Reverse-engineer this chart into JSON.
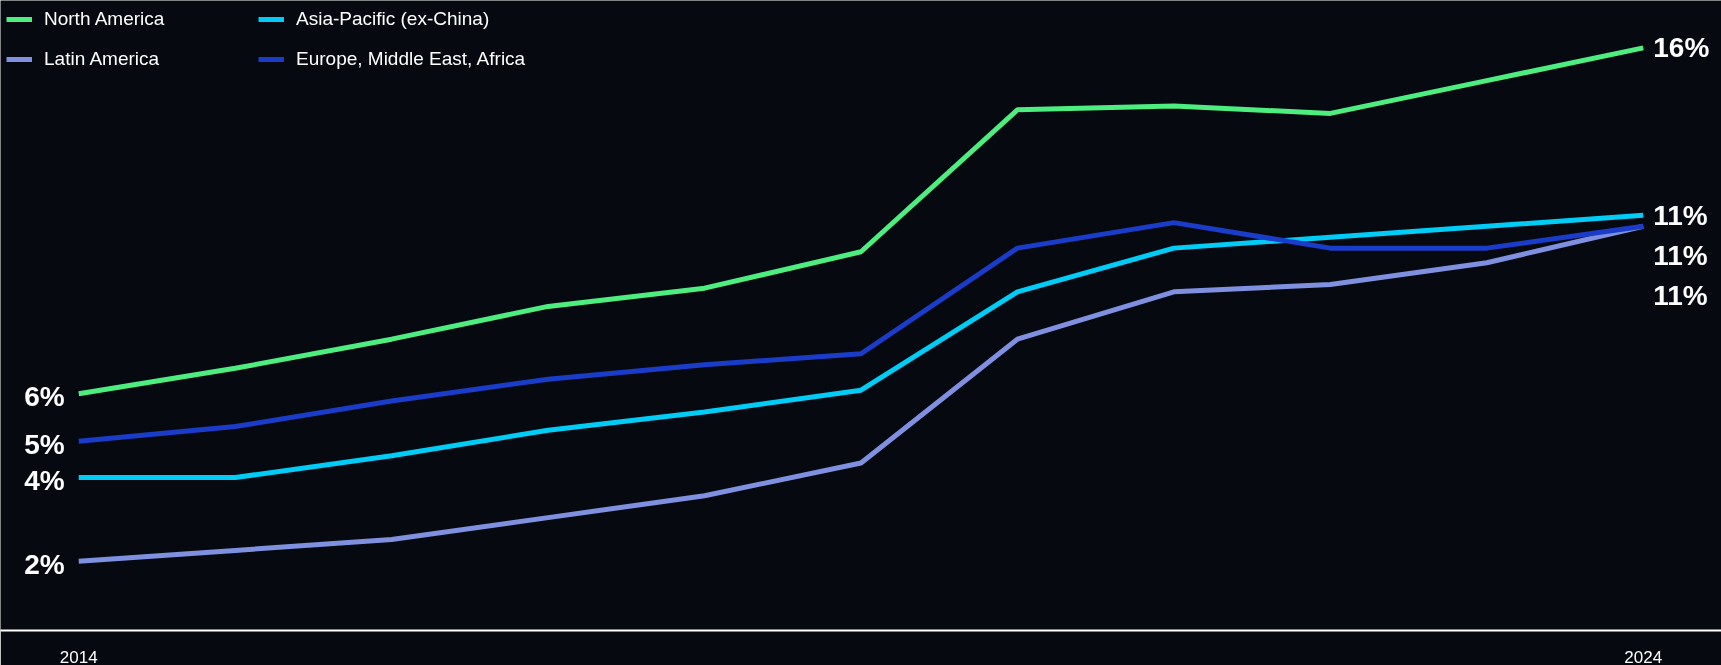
{
  "chart_data": {
    "type": "line",
    "x": [
      "2014",
      "2015",
      "2016",
      "2017",
      "2018",
      "2019",
      "2020",
      "2021",
      "2022",
      "2023",
      "2024"
    ],
    "xlim": [
      "2013-07",
      "2024-07"
    ],
    "ylim": [
      0,
      17.3
    ],
    "tick_labels": "x",
    "xticks": [
      {
        "value": "2014",
        "label": "2014"
      },
      {
        "value": "2024",
        "label": "2024"
      }
    ],
    "series": [
      {
        "name": "North America",
        "color": "#4ded80",
        "values": [
          6.5,
          7.2,
          8.0,
          8.9,
          9.4,
          10.4,
          14.3,
          14.4,
          14.2,
          15.1,
          16
        ],
        "value_labels": [
          "6%",
          null,
          null,
          null,
          null,
          null,
          null,
          null,
          null,
          null,
          "16%"
        ]
      },
      {
        "name": "Latin America",
        "color": "#8090e0",
        "values": [
          1.9,
          2.2,
          2.5,
          3.1,
          3.7,
          4.6,
          8.0,
          9.3,
          9.5,
          10.1,
          11.1
        ],
        "value_labels": [
          "2%",
          null,
          null,
          null,
          null,
          null,
          null,
          null,
          null,
          null,
          "11%"
        ]
      },
      {
        "name": "Asia-Pacific (ex-China)",
        "color": "#00ccf5",
        "values": [
          4.2,
          4.2,
          4.8,
          5.5,
          6.0,
          6.6,
          9.3,
          10.5,
          10.8,
          11.1,
          11.4
        ],
        "value_labels": [
          "4%",
          null,
          null,
          null,
          null,
          null,
          null,
          null,
          null,
          null,
          "11%"
        ]
      },
      {
        "name": "Europe, Middle East, Africa",
        "color": "#1a3cc8",
        "values": [
          5.2,
          5.6,
          6.3,
          6.9,
          7.3,
          7.6,
          10.5,
          11.2,
          10.5,
          10.5,
          11.1
        ],
        "value_labels": [
          "5%",
          null,
          null,
          null,
          null,
          null,
          null,
          null,
          null,
          null,
          "11%"
        ]
      }
    ],
    "legend": "top left",
    "marker": "none",
    "line_style": "solid"
  }
}
